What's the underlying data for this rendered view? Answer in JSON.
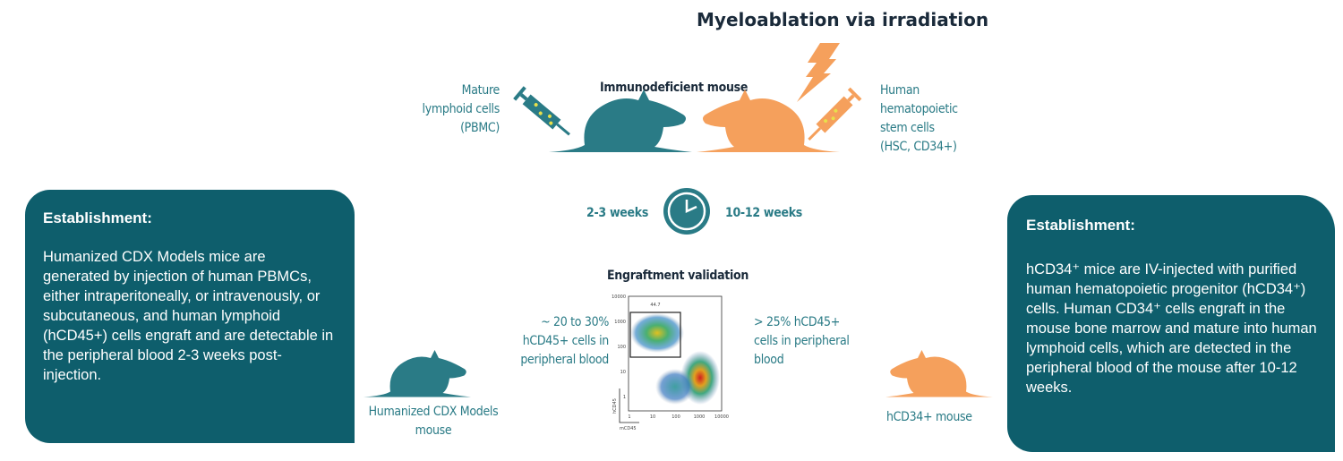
{
  "header": {
    "title": "Myeloablation via irradiation",
    "center_label": "Immunodeficient mouse"
  },
  "left_injection": {
    "lines": [
      "Mature",
      "lymphoid cells",
      "(PBMC)"
    ]
  },
  "right_injection": {
    "lines": [
      "Human",
      "hematopoietic",
      "stem cells",
      "(HSC, CD34+)"
    ]
  },
  "timeline": {
    "left": "2-3 weeks",
    "right": "10-12 weeks"
  },
  "engraftment": {
    "title": "Engraftment validation",
    "left_note": [
      "~ 20 to 30%",
      "hCD45+ cells in",
      "peripheral blood"
    ],
    "right_note": [
      "> 25% hCD45+",
      "cells in peripheral",
      "blood"
    ],
    "plot": {
      "gate_value": "44.7",
      "y_ticks": [
        "10000",
        "1000",
        "100",
        "10",
        "1"
      ],
      "x_ticks": [
        "1",
        "10",
        "100",
        "1000",
        "10000"
      ],
      "y_label": "hCD45",
      "x_label": "mCD45"
    }
  },
  "mice": {
    "left": [
      "Humanized CDX Models",
      "mouse"
    ],
    "right": "hCD34+ mouse"
  },
  "left_box": {
    "heading": "Establishment:",
    "text": "Humanized CDX Models mice are generated by injection of human PBMCs, either intraperitoneally, or intravenously, or subcutaneous, and human lymphoid (hCD45+) cells engraft and are detectable in the peripheral blood 2-3 weeks post-injection."
  },
  "right_box": {
    "heading": "Establishment:",
    "text": "hCD34⁺ mice are  IV-injected with purified human hematopoietic progenitor (hCD34⁺) cells. Human CD34⁺ cells engraft in the mouse bone marrow and mature into human lymphoid cells, which are detected in the peripheral blood of the mouse after 10-12 weeks."
  },
  "colors": {
    "teal": "#2a7b86",
    "orange": "#f5a05c",
    "box": "#0e5e6c"
  }
}
